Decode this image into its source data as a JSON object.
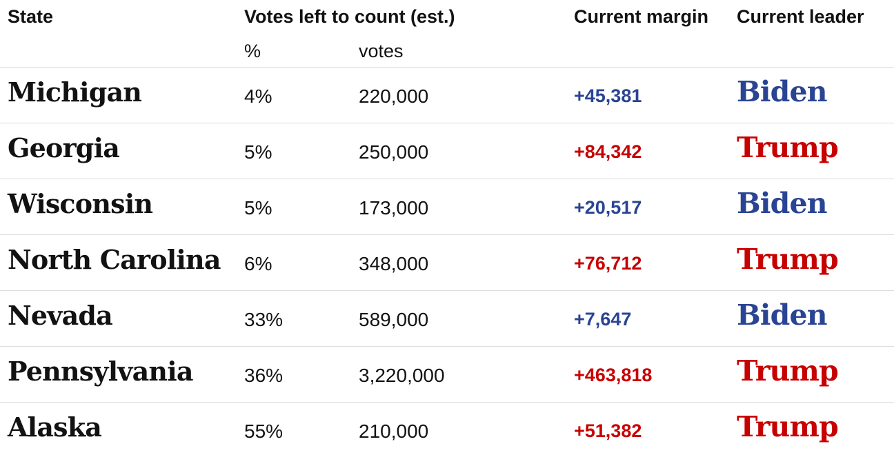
{
  "header": {
    "state": "State",
    "votes_left": "Votes left to count (est.)",
    "pct": "%",
    "votes": "votes",
    "margin": "Current margin",
    "leader": "Current leader"
  },
  "colors": {
    "biden": "#2a4494",
    "trump": "#c70000",
    "divider": "#dcdcdc"
  },
  "rows": [
    {
      "state": "Michigan",
      "pct": "4%",
      "votes": "220,000",
      "margin": "+45,381",
      "leader": "Biden",
      "party": "biden"
    },
    {
      "state": "Georgia",
      "pct": "5%",
      "votes": "250,000",
      "margin": "+84,342",
      "leader": "Trump",
      "party": "trump"
    },
    {
      "state": "Wisconsin",
      "pct": "5%",
      "votes": "173,000",
      "margin": "+20,517",
      "leader": "Biden",
      "party": "biden"
    },
    {
      "state": "North Carolina",
      "pct": "6%",
      "votes": "348,000",
      "margin": "+76,712",
      "leader": "Trump",
      "party": "trump"
    },
    {
      "state": "Nevada",
      "pct": "33%",
      "votes": "589,000",
      "margin": "+7,647",
      "leader": "Biden",
      "party": "biden"
    },
    {
      "state": "Pennsylvania",
      "pct": "36%",
      "votes": "3,220,000",
      "margin": "+463,818",
      "leader": "Trump",
      "party": "trump"
    },
    {
      "state": "Alaska",
      "pct": "55%",
      "votes": "210,000",
      "margin": "+51,382",
      "leader": "Trump",
      "party": "trump"
    }
  ]
}
